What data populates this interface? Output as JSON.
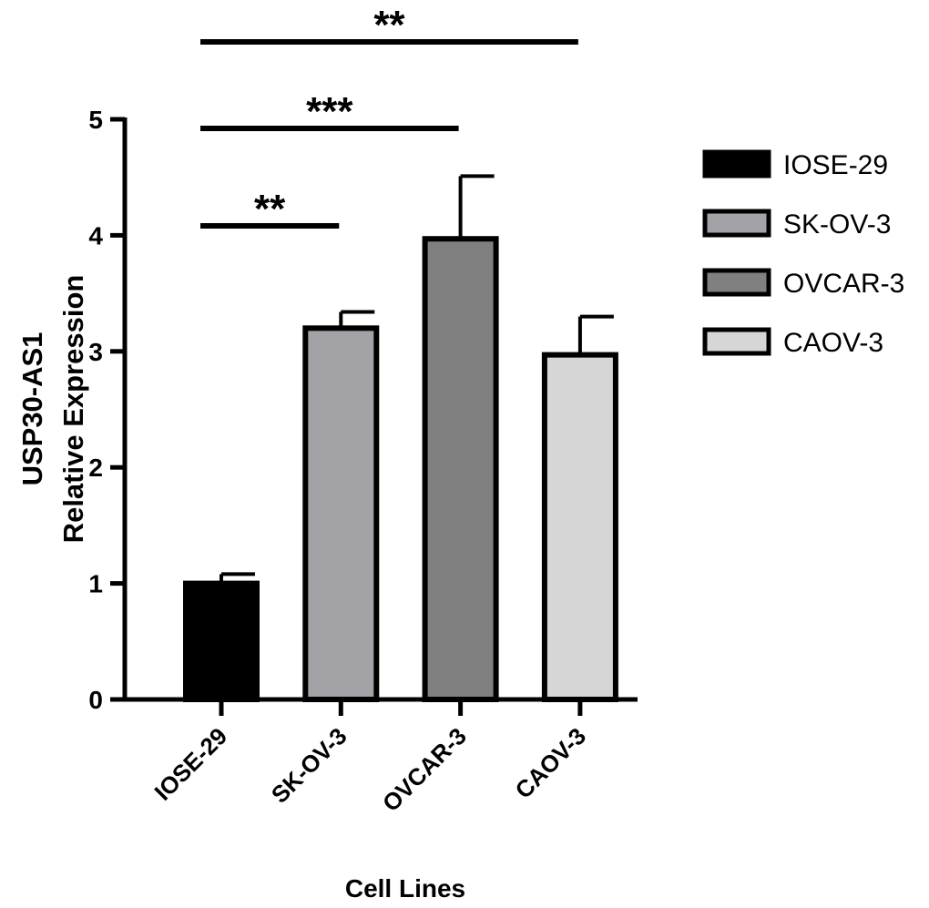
{
  "chart_data": {
    "type": "bar",
    "title": "",
    "xlabel": "Cell Lines",
    "ylabel_lines": [
      "USP30-AS1",
      "Relative Expression"
    ],
    "ylim": [
      0,
      5
    ],
    "yticks": [
      "0",
      "1",
      "2",
      "3",
      "4",
      "5"
    ],
    "categories": [
      "IOSE-29",
      "SK-OV-3",
      "OVCAR-3",
      "CAOV-3"
    ],
    "values": [
      1.0,
      3.2,
      3.97,
      2.97
    ],
    "errors": [
      0.08,
      0.14,
      0.54,
      0.33
    ],
    "colors": [
      "#000000",
      "#a3a3a7",
      "#808080",
      "#d6d6d6"
    ],
    "legend": {
      "placement": "right",
      "entries": [
        "IOSE-29",
        "SK-OV-3",
        "OVCAR-3",
        "CAOV-3"
      ]
    },
    "significance": [
      {
        "from": "IOSE-29",
        "to": "SK-OV-3",
        "label": "**"
      },
      {
        "from": "IOSE-29",
        "to": "OVCAR-3",
        "label": "***"
      },
      {
        "from": "IOSE-29",
        "to": "CAOV-3",
        "label": "**"
      }
    ]
  }
}
